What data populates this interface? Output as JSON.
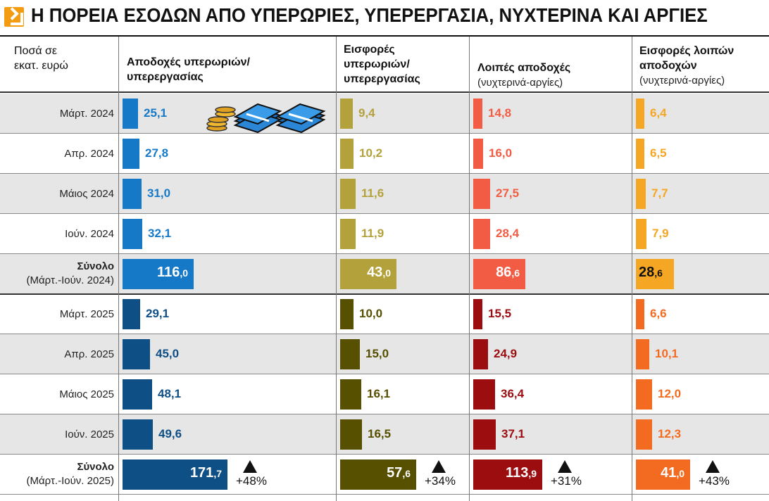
{
  "title": "Η ΠΟΡΕΙΑ ΕΣΟΔΩΝ ΑΠΟ ΥΠΕΡΩΡΙΕΣ, ΥΠΕΡΕΡΓΑΣΙΑ, ΝΥΧΤΕΡΙΝΑ ΚΑΙ ΑΡΓΙΕΣ",
  "unit_label": [
    "Ποσά σε",
    "εκατ. ευρώ"
  ],
  "colors": {
    "col1_2024": "#1679c8",
    "col1_2025": "#0e4f86",
    "col2_2024": "#b3a23b",
    "col2_2025": "#575000",
    "col3_2024": "#f25c44",
    "col3_2025": "#9c0d10",
    "col4_2024": "#f5a623",
    "col4_2025": "#f36b21",
    "shade": "#e6e6e6"
  },
  "chart_data": {
    "type": "table",
    "columns": [
      {
        "title_lines": [
          "Αποδοχές υπερωριών/",
          "υπερεργασίας"
        ],
        "subtitle": ""
      },
      {
        "title_lines": [
          "Εισφορές",
          "υπερωριών/",
          "υπερεργασίας"
        ],
        "subtitle": ""
      },
      {
        "title_lines": [
          "Λοιπές αποδοχές"
        ],
        "subtitle": "(νυχτερινά-αργίες)"
      },
      {
        "title_lines": [
          "Εισφορές λοιπών",
          "αποδοχών"
        ],
        "subtitle": "(νυχτερινά-αργίες)"
      }
    ],
    "rows": [
      {
        "label": [
          "Μάρτ. 2024"
        ],
        "values": [
          "25,1",
          "9,4",
          "14,8",
          "6,4"
        ],
        "nums": [
          25.1,
          9.4,
          14.8,
          6.4
        ],
        "year": "2024",
        "total": false
      },
      {
        "label": [
          "Απρ. 2024"
        ],
        "values": [
          "27,8",
          "10,2",
          "16,0",
          "6,5"
        ],
        "nums": [
          27.8,
          10.2,
          16.0,
          6.5
        ],
        "year": "2024",
        "total": false
      },
      {
        "label": [
          "Μάιος 2024"
        ],
        "values": [
          "31,0",
          "11,6",
          "27,5",
          "7,7"
        ],
        "nums": [
          31.0,
          11.6,
          27.5,
          7.7
        ],
        "year": "2024",
        "total": false
      },
      {
        "label": [
          "Ιούν. 2024"
        ],
        "values": [
          "32,1",
          "11,9",
          "28,4",
          "7,9"
        ],
        "nums": [
          32.1,
          11.9,
          28.4,
          7.9
        ],
        "year": "2024",
        "total": false
      },
      {
        "label": [
          "Σύνολο",
          "(Μάρτ.-Ιούν. 2024)"
        ],
        "values_int": [
          "116",
          "43",
          "86",
          "28"
        ],
        "values_dec": [
          ",0",
          ",0",
          ",6",
          ",6"
        ],
        "nums": [
          116.0,
          43.0,
          86.6,
          28.6
        ],
        "year": "2024",
        "total": true
      },
      {
        "label": [
          "Μάρτ. 2025"
        ],
        "values": [
          "29,1",
          "10,0",
          "15,5",
          "6,6"
        ],
        "nums": [
          29.1,
          10.0,
          15.5,
          6.6
        ],
        "year": "2025",
        "total": false
      },
      {
        "label": [
          "Απρ. 2025"
        ],
        "values": [
          "45,0",
          "15,0",
          "24,9",
          "10,1"
        ],
        "nums": [
          45.0,
          15.0,
          24.9,
          10.1
        ],
        "year": "2025",
        "total": false
      },
      {
        "label": [
          "Μάιος 2025"
        ],
        "values": [
          "48,1",
          "16,1",
          "36,4",
          "12,0"
        ],
        "nums": [
          48.1,
          16.1,
          36.4,
          12.0
        ],
        "year": "2025",
        "total": false
      },
      {
        "label": [
          "Ιούν. 2025"
        ],
        "values": [
          "49,6",
          "16,5",
          "37,1",
          "12,3"
        ],
        "nums": [
          49.6,
          16.5,
          37.1,
          12.3
        ],
        "year": "2025",
        "total": false
      },
      {
        "label": [
          "Σύνολο",
          "(Μάρτ.-Ιούν. 2025)"
        ],
        "values_int": [
          "171",
          "57",
          "113",
          "41"
        ],
        "values_dec": [
          ",7",
          ",6",
          ",9",
          ",0"
        ],
        "nums": [
          171.7,
          57.6,
          113.9,
          41.0
        ],
        "year": "2025",
        "total": true,
        "changes": [
          "+48%",
          "+34%",
          "+31%",
          "+43%"
        ]
      }
    ]
  }
}
